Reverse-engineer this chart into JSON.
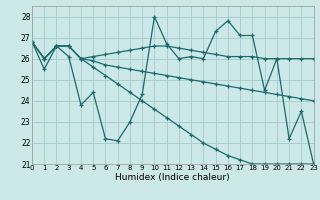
{
  "xlabel": "Humidex (Indice chaleur)",
  "background_color": "#cce8e8",
  "grid_color": "#aacece",
  "line_color": "#1a6b6b",
  "xlim": [
    0,
    23
  ],
  "ylim": [
    21,
    28.5
  ],
  "yticks": [
    21,
    22,
    23,
    24,
    25,
    26,
    27,
    28
  ],
  "xticks": [
    0,
    1,
    2,
    3,
    4,
    5,
    6,
    7,
    8,
    9,
    10,
    11,
    12,
    13,
    14,
    15,
    16,
    17,
    18,
    19,
    20,
    21,
    22,
    23
  ],
  "series": [
    [
      26.8,
      25.5,
      26.6,
      26.1,
      23.8,
      24.4,
      22.2,
      22.1,
      23.0,
      24.3,
      28.0,
      26.7,
      26.0,
      26.1,
      26.0,
      27.3,
      27.8,
      27.1,
      27.1,
      24.5,
      26.0,
      22.2,
      23.5,
      21.0
    ],
    [
      26.8,
      26.0,
      26.6,
      26.6,
      26.0,
      26.1,
      26.2,
      26.3,
      26.4,
      26.5,
      26.6,
      26.6,
      26.5,
      26.4,
      26.3,
      26.2,
      26.1,
      26.1,
      26.1,
      26.0,
      26.0,
      26.0,
      26.0,
      26.0
    ],
    [
      26.8,
      26.0,
      26.6,
      26.6,
      26.0,
      25.9,
      25.7,
      25.6,
      25.5,
      25.4,
      25.3,
      25.2,
      25.1,
      25.0,
      24.9,
      24.8,
      24.7,
      24.6,
      24.5,
      24.4,
      24.3,
      24.2,
      24.1,
      24.0
    ],
    [
      26.8,
      26.0,
      26.6,
      26.6,
      26.0,
      25.6,
      25.2,
      24.8,
      24.4,
      24.0,
      23.6,
      23.2,
      22.8,
      22.4,
      22.0,
      21.7,
      21.4,
      21.2,
      21.0,
      21.0,
      21.0,
      21.0,
      21.0,
      21.0
    ]
  ]
}
